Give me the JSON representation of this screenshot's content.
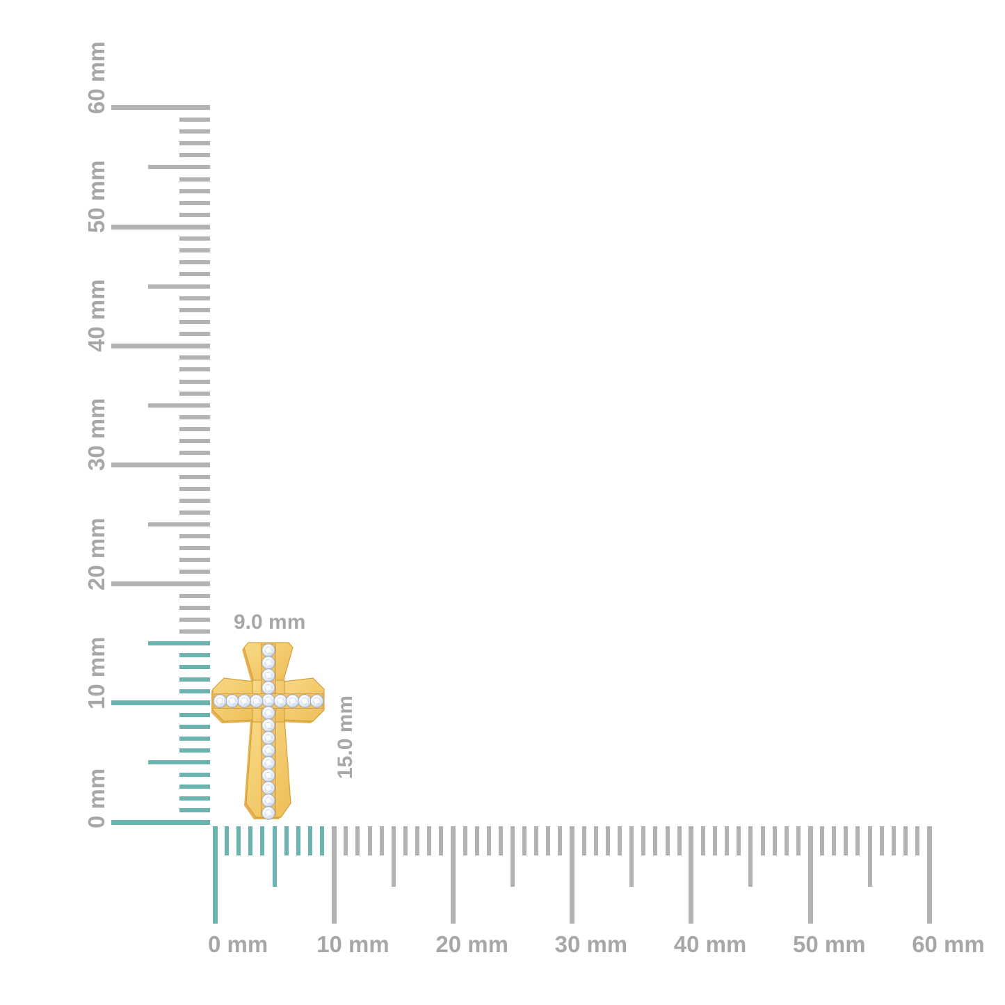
{
  "page": {
    "background": "#FFFFFF"
  },
  "dimension_labels": {
    "width": "9.0 mm",
    "height": "15.0 mm"
  },
  "rulers": {
    "unit": "mm",
    "tick_color": "#B2B2B2",
    "highlight_color": "#6AB3AF",
    "label_color": "#A7A7A7",
    "vertical": {
      "range_mm": [
        0,
        60
      ],
      "tick_interval_mm": 1,
      "medium_every_mm": 5,
      "major_every_mm": 10,
      "highlight_to_mm": 15,
      "labels": [
        {
          "mm": 0,
          "text": "0 mm"
        },
        {
          "mm": 10,
          "text": "10 mm"
        },
        {
          "mm": 20,
          "text": "20 mm"
        },
        {
          "mm": 30,
          "text": "30 mm"
        },
        {
          "mm": 40,
          "text": "40 mm"
        },
        {
          "mm": 50,
          "text": "50 mm"
        },
        {
          "mm": 60,
          "text": "60 mm"
        }
      ]
    },
    "horizontal": {
      "range_mm": [
        0,
        60
      ],
      "tick_interval_mm": 1,
      "medium_every_mm": 5,
      "major_every_mm": 10,
      "highlight_to_mm": 9,
      "labels": [
        {
          "mm": 0,
          "text": "0 mm"
        },
        {
          "mm": 10,
          "text": "10 mm"
        },
        {
          "mm": 20,
          "text": "20 mm"
        },
        {
          "mm": 30,
          "text": "30 mm"
        },
        {
          "mm": 40,
          "text": "40 mm"
        },
        {
          "mm": 50,
          "text": "50 mm"
        },
        {
          "mm": 60,
          "text": "60 mm"
        }
      ]
    }
  },
  "product": {
    "kind": "gold diamond cross pendant",
    "metal": {
      "light": "#F8D987",
      "base": "#EEBE56",
      "dark": "#D49F3F",
      "back": "#E6B14E",
      "channel": "#F0C264",
      "channel_line": "#CC9840"
    },
    "stones": {
      "vertical_count": 14,
      "horizontal_count": 8,
      "grad_center": "#FFFFFF",
      "grad_mid": "#F1F5FB",
      "grad_outer": "#D8E0EB",
      "grad_edge": "#ABB7CA",
      "stroke": "#96A2B5",
      "facet": "#C8D1DE",
      "sparkle": "#FFFFFF"
    }
  }
}
